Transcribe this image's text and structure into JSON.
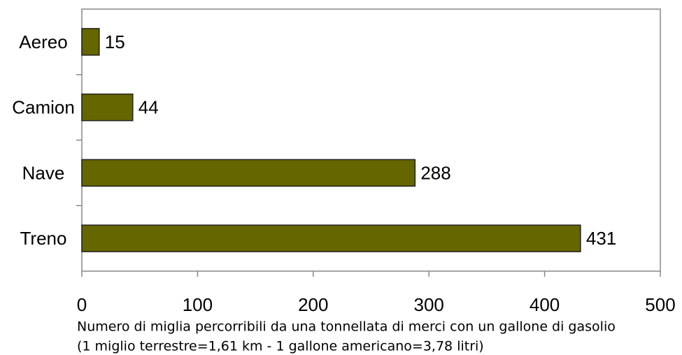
{
  "chart_data": {
    "type": "bar",
    "orientation": "horizontal",
    "categories": [
      "Aereo",
      "Camion",
      "Nave",
      "Treno"
    ],
    "values": [
      15,
      44,
      288,
      431
    ],
    "color": "#666600",
    "xlim": [
      0,
      500
    ],
    "xticks": [
      0,
      100,
      200,
      300,
      400,
      500
    ],
    "xlabel": [
      "Numero di miglia percorribili da una tonnellata di merci con un gallone di gasolio",
      "(1 miglio terrestre=1,61 km - 1 gallone americano=3,78 litri)"
    ],
    "grid": false
  }
}
